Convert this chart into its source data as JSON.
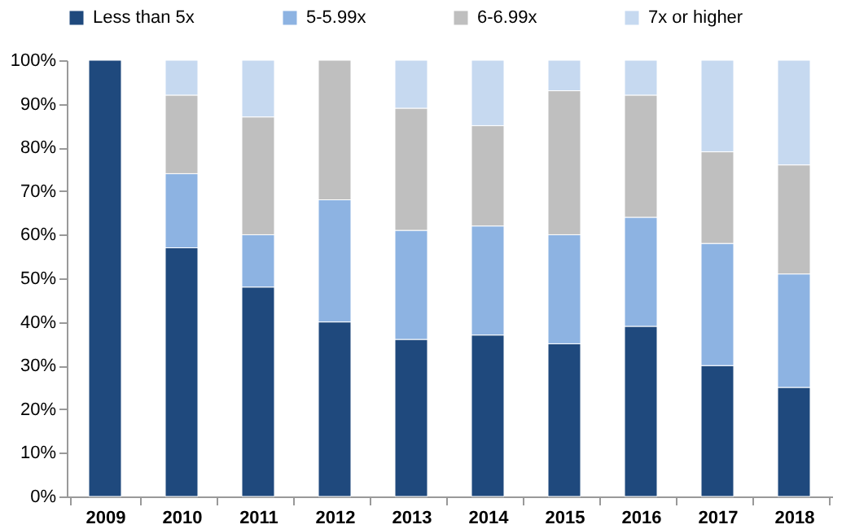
{
  "chart_data": {
    "type": "bar",
    "stacked": true,
    "categories": [
      "2009",
      "2010",
      "2011",
      "2012",
      "2013",
      "2014",
      "2015",
      "2016",
      "2017",
      "2018"
    ],
    "series": [
      {
        "name": "Less than 5x",
        "color": "#1f497d",
        "values": [
          100,
          57,
          48,
          40,
          36,
          37,
          35,
          39,
          30,
          25
        ]
      },
      {
        "name": "5-5.99x",
        "color": "#8db3e2",
        "values": [
          0,
          17,
          12,
          28,
          25,
          25,
          25,
          25,
          28,
          26
        ]
      },
      {
        "name": "6-6.99x",
        "color": "#bfbfbf",
        "values": [
          0,
          18,
          27,
          32,
          28,
          23,
          33,
          28,
          21,
          25
        ]
      },
      {
        "name": "7x or higher",
        "color": "#c6d9f0",
        "values": [
          0,
          8,
          13,
          0,
          11,
          15,
          7,
          8,
          21,
          24
        ]
      }
    ],
    "ylim": [
      0,
      100
    ],
    "yticks": [
      {
        "value": 0,
        "label": "0%"
      },
      {
        "value": 10,
        "label": "10%"
      },
      {
        "value": 20,
        "label": "20%"
      },
      {
        "value": 30,
        "label": "30%"
      },
      {
        "value": 40,
        "label": "40%"
      },
      {
        "value": 50,
        "label": "50%"
      },
      {
        "value": 60,
        "label": "60%"
      },
      {
        "value": 70,
        "label": "70%"
      },
      {
        "value": 80,
        "label": "80%"
      },
      {
        "value": 90,
        "label": "90%"
      },
      {
        "value": 100,
        "label": "100%"
      }
    ],
    "grid": false,
    "legend": "top"
  }
}
